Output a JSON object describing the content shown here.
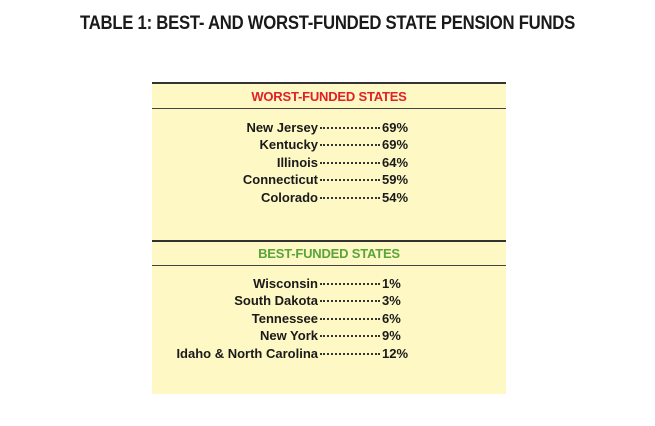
{
  "title": "TABLE 1: BEST- AND WORST-FUNDED STATE PENSION FUNDS",
  "sections": [
    {
      "heading": "WORST-FUNDED STATES",
      "rows": [
        {
          "state": "New Jersey",
          "value": "69%"
        },
        {
          "state": "Kentucky",
          "value": "69%"
        },
        {
          "state": "Illinois",
          "value": "64%"
        },
        {
          "state": "Connecticut",
          "value": "59%"
        },
        {
          "state": "Colorado",
          "value": "54%"
        }
      ]
    },
    {
      "heading": "BEST-FUNDED STATES",
      "rows": [
        {
          "state": "Wisconsin",
          "value": "1%"
        },
        {
          "state": "South Dakota",
          "value": "3%"
        },
        {
          "state": "Tennessee",
          "value": "6%"
        },
        {
          "state": "New York",
          "value": "9%"
        },
        {
          "state": "Idaho & North Carolina",
          "value": "12%"
        }
      ]
    }
  ]
}
